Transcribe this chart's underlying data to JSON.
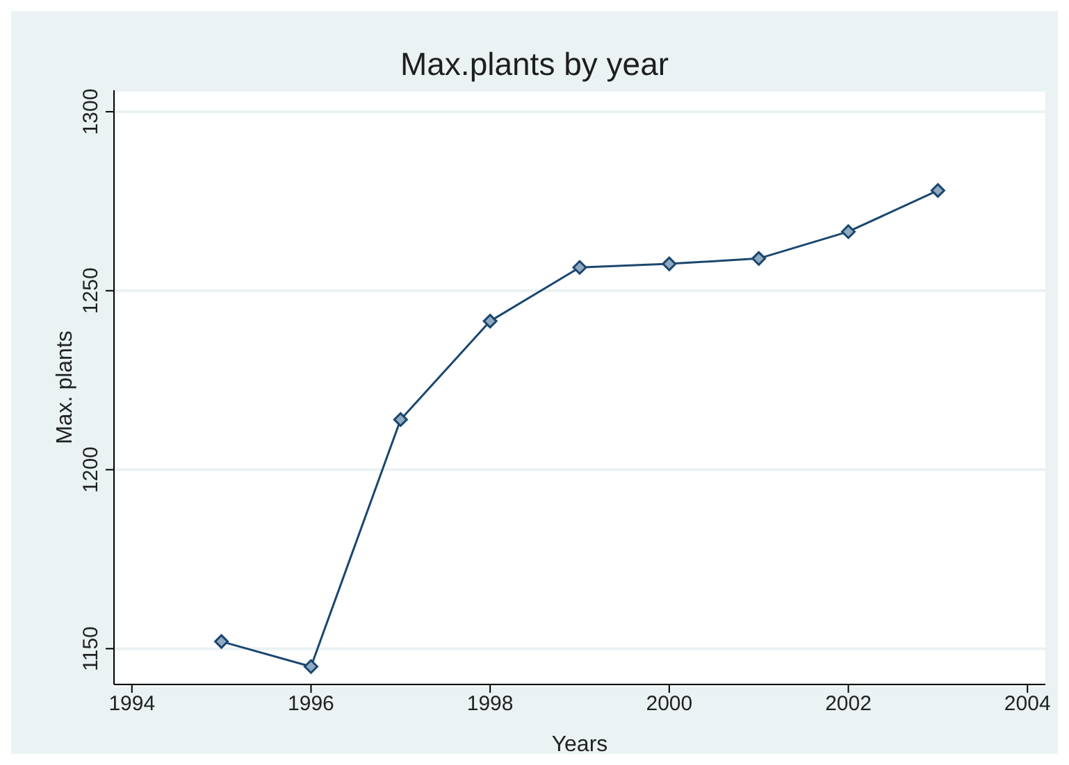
{
  "chart_data": {
    "type": "line",
    "title": "Max.plants by year",
    "xlabel": "Years",
    "ylabel": "Max. plants",
    "x": [
      1995,
      1996,
      1997,
      1998,
      1999,
      2000,
      2001,
      2002,
      2003
    ],
    "series": [
      {
        "color": "#1a476f",
        "values": [
          1152,
          1145,
          1214,
          1241.5,
          1256.5,
          1257.5,
          1259,
          1266.5,
          1278
        ]
      }
    ],
    "xlim": [
      1993.8,
      2004.2
    ],
    "ylim": [
      1140,
      1306
    ],
    "xticks": [
      1994,
      1996,
      1998,
      2000,
      2002,
      2004
    ],
    "yticks": [
      1150,
      1200,
      1250,
      1300
    ],
    "grid": "y",
    "marker": "diamond",
    "line_style": "solid",
    "legend": false
  }
}
